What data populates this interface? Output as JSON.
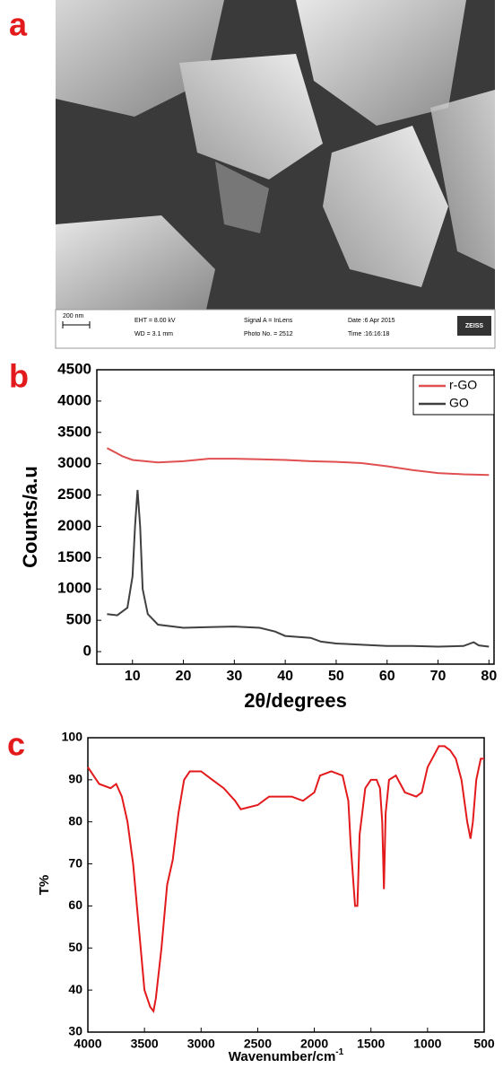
{
  "panel_labels": [
    "a",
    "b",
    "c"
  ],
  "sem": {
    "scale_bar": "200 nm",
    "eht": "EHT =  8.00 kV",
    "wd": "WD =  3.1 mm",
    "signal": "Signal A = InLens",
    "photo": "Photo No. = 2512",
    "date": "Date :6 Apr 2015",
    "time": "Time :16:16:18",
    "logo": "ZEISS"
  },
  "chart_data": [
    {
      "type": "line",
      "xlabel": "2θ/degrees",
      "ylabel": "Counts/a.u",
      "xlim": [
        3,
        81
      ],
      "ylim": [
        -200,
        4500
      ],
      "xticks": [
        10,
        20,
        30,
        40,
        50,
        60,
        70,
        80
      ],
      "yticks": [
        0,
        500,
        1000,
        1500,
        2000,
        2500,
        3000,
        3500,
        4000,
        4500
      ],
      "legend": "upper right",
      "series": [
        {
          "name": "r-GO",
          "color": "#e05050",
          "x": [
            5,
            8,
            10,
            15,
            20,
            25,
            30,
            35,
            40,
            45,
            50,
            55,
            60,
            65,
            70,
            75,
            80
          ],
          "values": [
            3250,
            3120,
            3060,
            3020,
            3040,
            3080,
            3080,
            3070,
            3060,
            3040,
            3030,
            3010,
            2960,
            2900,
            2850,
            2830,
            2820
          ]
        },
        {
          "name": "GO",
          "color": "#404040",
          "x": [
            5,
            7,
            9,
            10,
            10.5,
            11,
            11.5,
            12,
            13,
            15,
            20,
            25,
            30,
            35,
            38,
            40,
            45,
            47,
            50,
            55,
            60,
            65,
            70,
            75,
            77,
            78,
            80
          ],
          "values": [
            600,
            580,
            700,
            1200,
            2000,
            2580,
            2000,
            1000,
            600,
            430,
            380,
            390,
            400,
            380,
            320,
            250,
            220,
            160,
            130,
            110,
            90,
            90,
            80,
            90,
            150,
            100,
            80
          ]
        }
      ]
    },
    {
      "type": "line",
      "xlabel": "Wavenumber/cm",
      "xlabel_superscript": "-1",
      "ylabel": "T%",
      "xlim": [
        4000,
        500
      ],
      "ylim": [
        30,
        100
      ],
      "xticks": [
        4000,
        3500,
        3000,
        2500,
        2000,
        1500,
        1000,
        500
      ],
      "yticks": [
        30,
        40,
        50,
        60,
        70,
        80,
        90,
        100
      ],
      "series": [
        {
          "color": "#e31a1c",
          "x": [
            4000,
            3900,
            3800,
            3750,
            3700,
            3650,
            3600,
            3550,
            3500,
            3450,
            3420,
            3400,
            3350,
            3300,
            3250,
            3200,
            3150,
            3100,
            3000,
            2900,
            2800,
            2700,
            2650,
            2500,
            2400,
            2200,
            2100,
            2000,
            1950,
            1850,
            1750,
            1700,
            1680,
            1640,
            1620,
            1600,
            1550,
            1500,
            1450,
            1420,
            1400,
            1385,
            1370,
            1340,
            1280,
            1200,
            1100,
            1050,
            1000,
            900,
            850,
            800,
            750,
            700,
            650,
            620,
            600,
            570,
            530,
            500
          ],
          "values": [
            93,
            89,
            88,
            89,
            86,
            80,
            70,
            55,
            40,
            36,
            35,
            38,
            50,
            65,
            71,
            82,
            90,
            92,
            92,
            90,
            88,
            85,
            83,
            84,
            86,
            86,
            85,
            87,
            91,
            92,
            91,
            85,
            75,
            60,
            60,
            77,
            88,
            90,
            90,
            88,
            80,
            64,
            82,
            90,
            91,
            87,
            86,
            87,
            93,
            98,
            98,
            97,
            95,
            90,
            80,
            76,
            80,
            90,
            95,
            95
          ]
        }
      ]
    }
  ]
}
